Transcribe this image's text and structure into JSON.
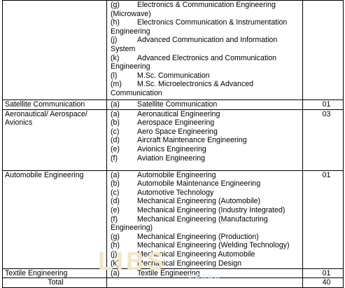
{
  "rows": [
    {
      "name": "",
      "items": [
        {
          "key": "(g)",
          "text": "Electronics & Communication Engineering",
          "cont": "(Microwave)"
        },
        {
          "key": "(h)",
          "text": "Electronics Communication & Instrumentation",
          "cont": "Engineering"
        },
        {
          "key": "(j)",
          "text": "Advanced Communication and Information",
          "cont": "System"
        },
        {
          "key": "(k)",
          "text": "Advanced Electronics and Communication",
          "cont": "Engineering"
        },
        {
          "key": "(l)",
          "text": "M.Sc. Communication",
          "cont": ""
        },
        {
          "key": "(m)",
          "text": "M.Sc. Microelectronics & Advanced",
          "cont": "Communication"
        }
      ],
      "count": ""
    },
    {
      "name": "Satellite Communication",
      "items": [
        {
          "key": "(a)",
          "text": "Satellite Communication",
          "cont": ""
        }
      ],
      "count": "01"
    },
    {
      "name": "Aeronautical/ Aerospace/ Avionics",
      "items": [
        {
          "key": "(a)",
          "text": "Aeronautical Engineering",
          "cont": ""
        },
        {
          "key": "(b)",
          "text": "Aerospace Engineering",
          "cont": ""
        },
        {
          "key": "(c)",
          "text": "Aero Space Engineering",
          "cont": ""
        },
        {
          "key": "(d)",
          "text": "Aircraft Maintenance Engineering",
          "cont": ""
        },
        {
          "key": "(e)",
          "text": "Avionics Engineering",
          "cont": ""
        },
        {
          "key": "(f)",
          "text": "Aviation Engineering",
          "cont": ""
        }
      ],
      "count": "03"
    },
    {
      "name": "Automobile Engineering",
      "items": [
        {
          "key": "(a)",
          "text": "Automobile Engineering",
          "cont": ""
        },
        {
          "key": "(b)",
          "text": "Automobile Maintenance Engineering",
          "cont": ""
        },
        {
          "key": "(c)",
          "text": "Automotive Technology",
          "cont": ""
        },
        {
          "key": "(d)",
          "text": "Mechanical Engineering (Automobile)",
          "cont": ""
        },
        {
          "key": "(e)",
          "text": "Mechanical Engineering (Industry Integrated)",
          "cont": ""
        },
        {
          "key": "(f)",
          "text": "Mechanical Engineering (Manufacturing",
          "cont": "Engineering)"
        },
        {
          "key": "(g)",
          "text": "Mechanical Engineering (Production)",
          "cont": ""
        },
        {
          "key": "(h)",
          "text": "Mechanical Engineering (Welding Technology)",
          "cont": ""
        },
        {
          "key": "(j)",
          "text": "Mechanical Engineering Automobile",
          "cont": ""
        },
        {
          "key": "(k)",
          "text": "Mechanical Engineering Design",
          "cont": ""
        }
      ],
      "count": "01"
    },
    {
      "name": "Textile Engineering",
      "items": [
        {
          "key": "(a)",
          "text": "Textile Engineering",
          "cont": ""
        }
      ],
      "count": "01"
    }
  ],
  "total": {
    "label": "Total",
    "count": "40"
  },
  "watermark": {
    "brand": "LIBS",
    "sub": "EXAMS"
  }
}
